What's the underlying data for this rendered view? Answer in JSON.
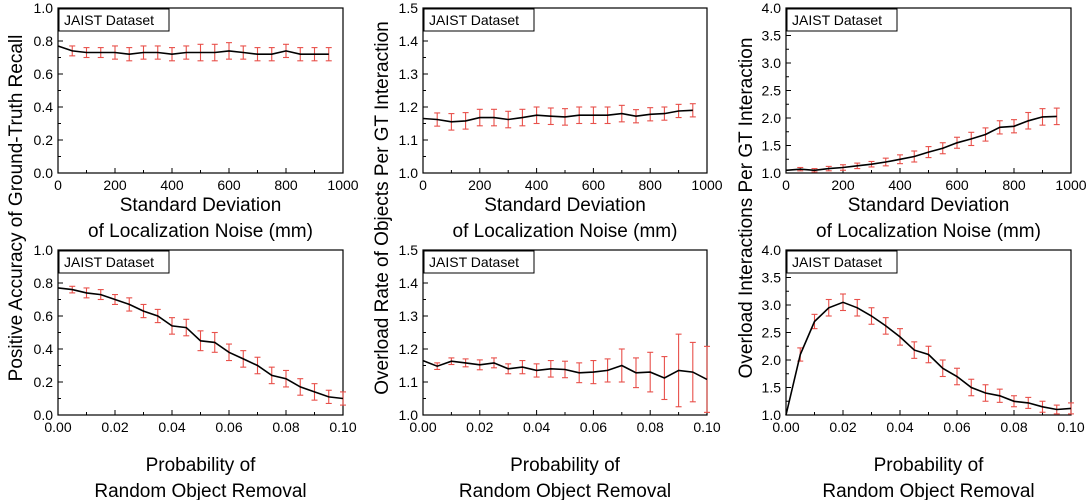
{
  "colors": {
    "line": "#000000",
    "error_bar": "#e8504a"
  },
  "chart_data": [
    {
      "type": "line",
      "legend_label": "JAIST Dataset",
      "xlabel_lines": [
        "Standard Deviation",
        "of Localization Noise (mm)"
      ],
      "ylabel": "",
      "xlim": [
        0,
        1000
      ],
      "ylim": [
        0,
        1.0
      ],
      "xticks": [
        "0",
        "200",
        "400",
        "600",
        "800",
        "1000"
      ],
      "yticks": [
        "0.0",
        "0.2",
        "0.4",
        "0.6",
        "0.8",
        "1.0"
      ],
      "x": [
        0,
        50,
        100,
        150,
        200,
        250,
        300,
        350,
        400,
        450,
        500,
        550,
        600,
        650,
        700,
        750,
        800,
        850,
        900,
        950
      ],
      "y": [
        0.77,
        0.74,
        0.73,
        0.73,
        0.73,
        0.72,
        0.73,
        0.73,
        0.72,
        0.73,
        0.73,
        0.73,
        0.74,
        0.73,
        0.72,
        0.72,
        0.74,
        0.72,
        0.72,
        0.72
      ],
      "err": [
        0,
        0.03,
        0.03,
        0.03,
        0.04,
        0.04,
        0.04,
        0.04,
        0.04,
        0.04,
        0.05,
        0.05,
        0.05,
        0.04,
        0.04,
        0.04,
        0.04,
        0.04,
        0.04,
        0.04
      ]
    },
    {
      "type": "line",
      "legend_label": "JAIST Dataset",
      "xlabel_lines": [
        "Standard Deviation",
        "of Localization Noise (mm)"
      ],
      "ylabel": "",
      "xlim": [
        0,
        1000
      ],
      "ylim": [
        1.0,
        1.5
      ],
      "xticks": [
        "0",
        "200",
        "400",
        "600",
        "800",
        "1000"
      ],
      "yticks": [
        "1.0",
        "1.1",
        "1.2",
        "1.3",
        "1.4",
        "1.5"
      ],
      "x": [
        0,
        50,
        100,
        150,
        200,
        250,
        300,
        350,
        400,
        450,
        500,
        550,
        600,
        650,
        700,
        750,
        800,
        850,
        900,
        950
      ],
      "y": [
        1.165,
        1.162,
        1.155,
        1.158,
        1.168,
        1.168,
        1.162,
        1.168,
        1.175,
        1.172,
        1.17,
        1.175,
        1.175,
        1.175,
        1.18,
        1.172,
        1.178,
        1.18,
        1.188,
        1.19
      ],
      "err": [
        0,
        0.02,
        0.025,
        0.025,
        0.025,
        0.025,
        0.025,
        0.025,
        0.025,
        0.025,
        0.025,
        0.025,
        0.025,
        0.025,
        0.025,
        0.02,
        0.02,
        0.02,
        0.02,
        0.02
      ]
    },
    {
      "type": "line",
      "legend_label": "JAIST Dataset",
      "xlabel_lines": [
        "Standard Deviation",
        "of Localization Noise (mm)"
      ],
      "ylabel": "",
      "xlim": [
        0,
        1000
      ],
      "ylim": [
        1.0,
        4.0
      ],
      "xticks": [
        "0",
        "200",
        "400",
        "600",
        "800",
        "1000"
      ],
      "yticks": [
        "1.0",
        "1.5",
        "2.0",
        "2.5",
        "3.0",
        "3.5",
        "4.0"
      ],
      "x": [
        0,
        50,
        100,
        150,
        200,
        250,
        300,
        350,
        400,
        450,
        500,
        550,
        600,
        650,
        700,
        750,
        800,
        850,
        900,
        950
      ],
      "y": [
        1.05,
        1.07,
        1.05,
        1.08,
        1.1,
        1.13,
        1.16,
        1.2,
        1.25,
        1.3,
        1.38,
        1.45,
        1.55,
        1.62,
        1.7,
        1.83,
        1.85,
        1.95,
        2.02,
        2.03
      ],
      "err": [
        0,
        0.03,
        0.03,
        0.04,
        0.05,
        0.05,
        0.05,
        0.07,
        0.08,
        0.1,
        0.1,
        0.1,
        0.1,
        0.12,
        0.12,
        0.12,
        0.12,
        0.15,
        0.15,
        0.15
      ]
    },
    {
      "type": "line",
      "legend_label": "JAIST Dataset",
      "xlabel_lines": [
        "Probability of",
        "Random Object Removal"
      ],
      "ylabel": "",
      "xlim": [
        0,
        0.1
      ],
      "ylim": [
        0,
        1.0
      ],
      "xticks": [
        "0.00",
        "0.02",
        "0.04",
        "0.06",
        "0.08",
        "0.10"
      ],
      "yticks": [
        "0.0",
        "0.2",
        "0.4",
        "0.6",
        "0.8",
        "1.0"
      ],
      "x": [
        0,
        0.005,
        0.01,
        0.015,
        0.02,
        0.025,
        0.03,
        0.035,
        0.04,
        0.045,
        0.05,
        0.055,
        0.06,
        0.065,
        0.07,
        0.075,
        0.08,
        0.085,
        0.09,
        0.095,
        0.1
      ],
      "y": [
        0.77,
        0.76,
        0.74,
        0.73,
        0.7,
        0.67,
        0.63,
        0.6,
        0.54,
        0.53,
        0.45,
        0.44,
        0.38,
        0.34,
        0.3,
        0.24,
        0.22,
        0.17,
        0.14,
        0.11,
        0.1
      ],
      "err": [
        0,
        0.02,
        0.03,
        0.03,
        0.03,
        0.04,
        0.04,
        0.04,
        0.05,
        0.05,
        0.06,
        0.06,
        0.05,
        0.05,
        0.05,
        0.05,
        0.05,
        0.05,
        0.05,
        0.04,
        0.04
      ]
    },
    {
      "type": "line",
      "legend_label": "JAIST Dataset",
      "xlabel_lines": [
        "Probability of",
        "Random Object Removal"
      ],
      "ylabel": "",
      "xlim": [
        0,
        0.1
      ],
      "ylim": [
        1.0,
        1.5
      ],
      "xticks": [
        "0.00",
        "0.02",
        "0.04",
        "0.06",
        "0.08",
        "0.10"
      ],
      "yticks": [
        "1.0",
        "1.1",
        "1.2",
        "1.3",
        "1.4",
        "1.5"
      ],
      "x": [
        0,
        0.005,
        0.01,
        0.015,
        0.02,
        0.025,
        0.03,
        0.035,
        0.04,
        0.045,
        0.05,
        0.055,
        0.06,
        0.065,
        0.07,
        0.075,
        0.08,
        0.085,
        0.09,
        0.095,
        0.1
      ],
      "y": [
        1.165,
        1.148,
        1.163,
        1.158,
        1.152,
        1.158,
        1.14,
        1.145,
        1.135,
        1.14,
        1.138,
        1.128,
        1.13,
        1.135,
        1.15,
        1.128,
        1.13,
        1.112,
        1.135,
        1.13,
        1.108
      ],
      "err": [
        0,
        0.01,
        0.01,
        0.012,
        0.015,
        0.015,
        0.015,
        0.02,
        0.02,
        0.025,
        0.025,
        0.03,
        0.035,
        0.035,
        0.05,
        0.045,
        0.06,
        0.065,
        0.11,
        0.09,
        0.1
      ]
    },
    {
      "type": "line",
      "legend_label": "JAIST Dataset",
      "xlabel_lines": [
        "Probability of",
        "Random Object Removal"
      ],
      "ylabel": "",
      "xlim": [
        0,
        0.1
      ],
      "ylim": [
        1.0,
        4.0
      ],
      "xticks": [
        "0.00",
        "0.02",
        "0.04",
        "0.06",
        "0.08",
        "0.10"
      ],
      "yticks": [
        "1.0",
        "1.5",
        "2.0",
        "2.5",
        "3.0",
        "3.5",
        "4.0"
      ],
      "x": [
        0,
        0.005,
        0.01,
        0.015,
        0.02,
        0.025,
        0.03,
        0.035,
        0.04,
        0.045,
        0.05,
        0.055,
        0.06,
        0.065,
        0.07,
        0.075,
        0.08,
        0.085,
        0.09,
        0.095,
        0.1
      ],
      "y": [
        1.0,
        2.1,
        2.7,
        2.95,
        3.05,
        2.95,
        2.8,
        2.62,
        2.42,
        2.18,
        2.1,
        1.85,
        1.7,
        1.5,
        1.4,
        1.35,
        1.25,
        1.22,
        1.15,
        1.1,
        1.12
      ],
      "err": [
        0,
        0.12,
        0.13,
        0.15,
        0.15,
        0.15,
        0.15,
        0.15,
        0.15,
        0.15,
        0.15,
        0.15,
        0.15,
        0.15,
        0.15,
        0.12,
        0.1,
        0.1,
        0.1,
        0.08,
        0.1
      ]
    }
  ],
  "shared_ylabels": {
    "left": "Positive Accuracy of Ground-Truth Recall",
    "middle": "Overload Rate of Objects Per GT Interaction",
    "right": "Overload Interactions Per GT Interaction"
  }
}
